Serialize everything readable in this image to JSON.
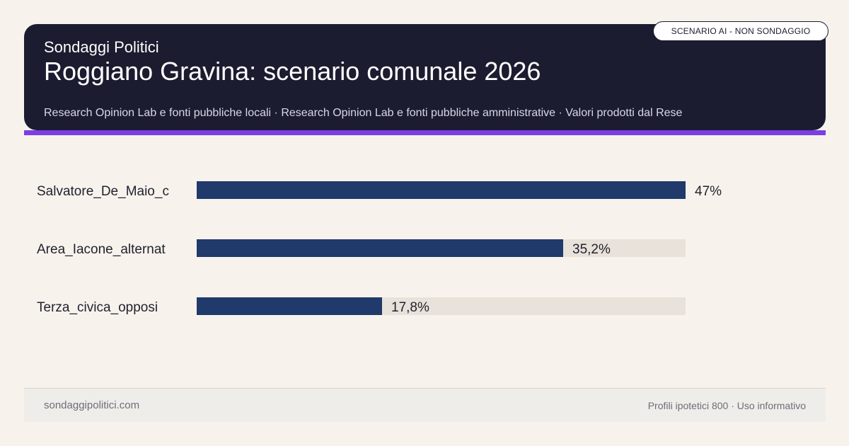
{
  "header": {
    "brand": "Sondaggi Politici",
    "title": "Roggiano Gravina: scenario comunale 2026",
    "subtitle": "Research Opinion Lab e fonti pubbliche locali · Research Opinion Lab e fonti pubbliche amministrative · Valori prodotti dal Rese",
    "badge": "SCENARIO AI - NON SONDAGGIO"
  },
  "colors": {
    "header_bg": "#1c1c30",
    "accent": "#7b3fe4",
    "bar": "#1f3a6b",
    "track": "#e8e2da",
    "background": "#f7f3ec"
  },
  "chart_data": {
    "type": "bar",
    "orientation": "horizontal",
    "categories": [
      "Salvatore_De_Maio_c",
      "Area_Iacone_alternat",
      "Terza_civica_opposi"
    ],
    "values": [
      47,
      35.2,
      17.8
    ],
    "value_labels": [
      "47%",
      "35,2%",
      "17,8%"
    ],
    "xlim": [
      0,
      47
    ],
    "grid": false
  },
  "footer": {
    "site": "sondaggipolitici.com",
    "note": "Profili ipotetici 800 · Uso informativo"
  }
}
